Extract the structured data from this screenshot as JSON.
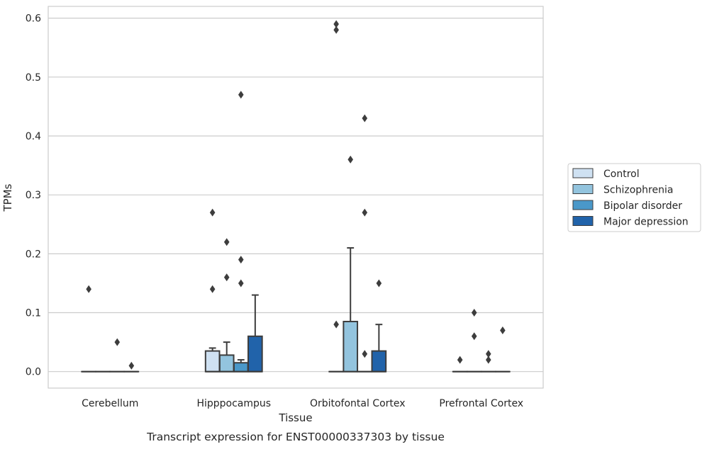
{
  "chart_data": {
    "type": "boxplot",
    "xlabel": "Tissue",
    "ylabel": "TPMs",
    "caption": "Transcript expression for ENST00000337303 by tissue",
    "ylim": [
      -0.028,
      0.62
    ],
    "yticks": [
      0.0,
      0.1,
      0.2,
      0.3,
      0.4,
      0.5,
      0.6
    ],
    "ytick_labels": [
      "0.0",
      "0.1",
      "0.2",
      "0.3",
      "0.4",
      "0.5",
      "0.6"
    ],
    "grid": "horizontal",
    "legend_position": "right",
    "categories": [
      "Cerebellum",
      "Hipppocampus",
      "Orbitofontal Cortex",
      "Prefrontal Cortex"
    ],
    "series": [
      {
        "name": "Control",
        "color": "#cfe1f2",
        "boxes": [
          {
            "q1": 0,
            "median": 0,
            "q3": 0,
            "whisker_low": 0,
            "whisker_high": 0,
            "outliers": [
              0.14
            ]
          },
          {
            "q1": 0,
            "median": 0,
            "q3": 0.035,
            "whisker_low": 0,
            "whisker_high": 0.04,
            "outliers": [
              0.14,
              0.27
            ]
          },
          {
            "q1": 0,
            "median": 0,
            "q3": 0,
            "whisker_low": 0,
            "whisker_high": 0,
            "outliers": [
              0.08,
              0.58,
              0.59
            ]
          },
          {
            "q1": 0,
            "median": 0,
            "q3": 0,
            "whisker_low": 0,
            "whisker_high": 0,
            "outliers": [
              0.02
            ]
          }
        ]
      },
      {
        "name": "Schizophrenia",
        "color": "#93c4de",
        "boxes": [
          {
            "q1": 0,
            "median": 0,
            "q3": 0,
            "whisker_low": 0,
            "whisker_high": 0,
            "outliers": []
          },
          {
            "q1": 0,
            "median": 0,
            "q3": 0.028,
            "whisker_low": 0,
            "whisker_high": 0.05,
            "outliers": [
              0.16,
              0.22
            ]
          },
          {
            "q1": 0,
            "median": 0,
            "q3": 0.085,
            "whisker_low": 0,
            "whisker_high": 0.21,
            "outliers": [
              0.36
            ]
          },
          {
            "q1": 0,
            "median": 0,
            "q3": 0,
            "whisker_low": 0,
            "whisker_high": 0,
            "outliers": [
              0.06,
              0.1
            ]
          }
        ]
      },
      {
        "name": "Bipolar disorder",
        "color": "#4a98c9",
        "boxes": [
          {
            "q1": 0,
            "median": 0,
            "q3": 0,
            "whisker_low": 0,
            "whisker_high": 0,
            "outliers": [
              0.05
            ]
          },
          {
            "q1": 0,
            "median": 0,
            "q3": 0.015,
            "whisker_low": 0,
            "whisker_high": 0.02,
            "outliers": [
              0.15,
              0.19,
              0.47
            ]
          },
          {
            "q1": 0,
            "median": 0,
            "q3": 0,
            "whisker_low": 0,
            "whisker_high": 0,
            "outliers": [
              0.03,
              0.27,
              0.43
            ]
          },
          {
            "q1": 0,
            "median": 0,
            "q3": 0,
            "whisker_low": 0,
            "whisker_high": 0,
            "outliers": [
              0.02,
              0.03
            ]
          }
        ]
      },
      {
        "name": "Major depression",
        "color": "#2163aa",
        "boxes": [
          {
            "q1": 0,
            "median": 0,
            "q3": 0,
            "whisker_low": 0,
            "whisker_high": 0,
            "outliers": [
              0.01
            ]
          },
          {
            "q1": 0,
            "median": 0,
            "q3": 0.06,
            "whisker_low": 0,
            "whisker_high": 0.13,
            "outliers": []
          },
          {
            "q1": 0,
            "median": 0,
            "q3": 0.035,
            "whisker_low": 0,
            "whisker_high": 0.08,
            "outliers": [
              0.15
            ]
          },
          {
            "q1": 0,
            "median": 0,
            "q3": 0,
            "whisker_low": 0,
            "whisker_high": 0,
            "outliers": [
              0.07
            ]
          }
        ]
      }
    ]
  }
}
